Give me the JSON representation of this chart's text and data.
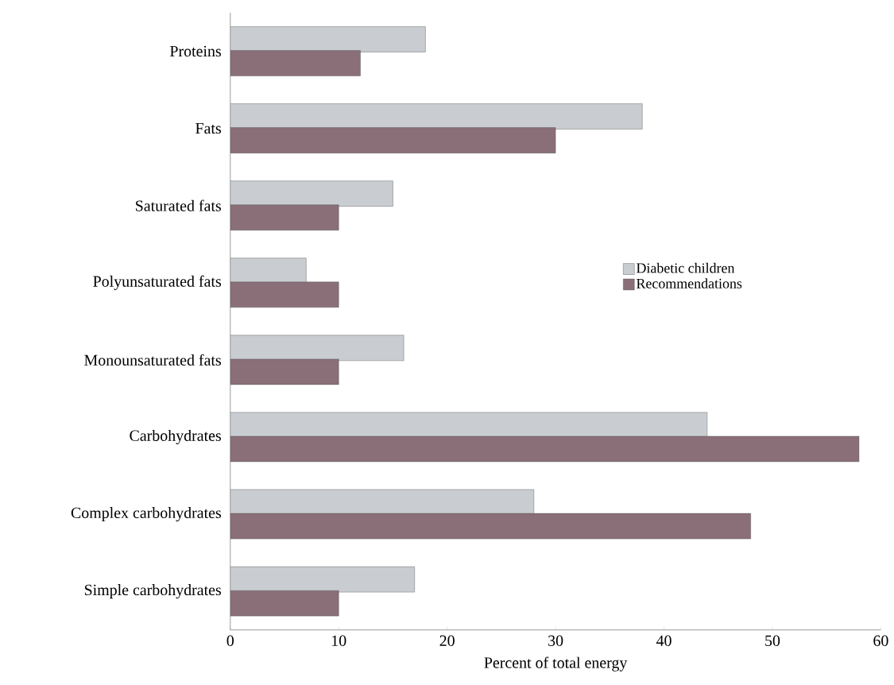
{
  "chart_data": {
    "type": "bar",
    "orientation": "horizontal",
    "xlabel": "Percent of total energy",
    "categories": [
      "Proteins",
      "Fats",
      "Saturated fats",
      "Polyunsaturated fats",
      "Monounsaturated fats",
      "Carbohydrates",
      "Complex carbohydrates",
      "Simple carbohydrates"
    ],
    "series": [
      {
        "name": "Diabetic children",
        "color": "#c9cdd1",
        "values": [
          18,
          38,
          15,
          7,
          16,
          44,
          28,
          17
        ]
      },
      {
        "name": "Recommendations",
        "color": "#8a6f78",
        "values": [
          12,
          30,
          10,
          10,
          10,
          58,
          48,
          10
        ]
      }
    ],
    "xlim": [
      0,
      60
    ],
    "xticks": [
      0,
      10,
      20,
      30,
      40,
      50,
      60
    ],
    "grid": false,
    "legend": "right"
  }
}
